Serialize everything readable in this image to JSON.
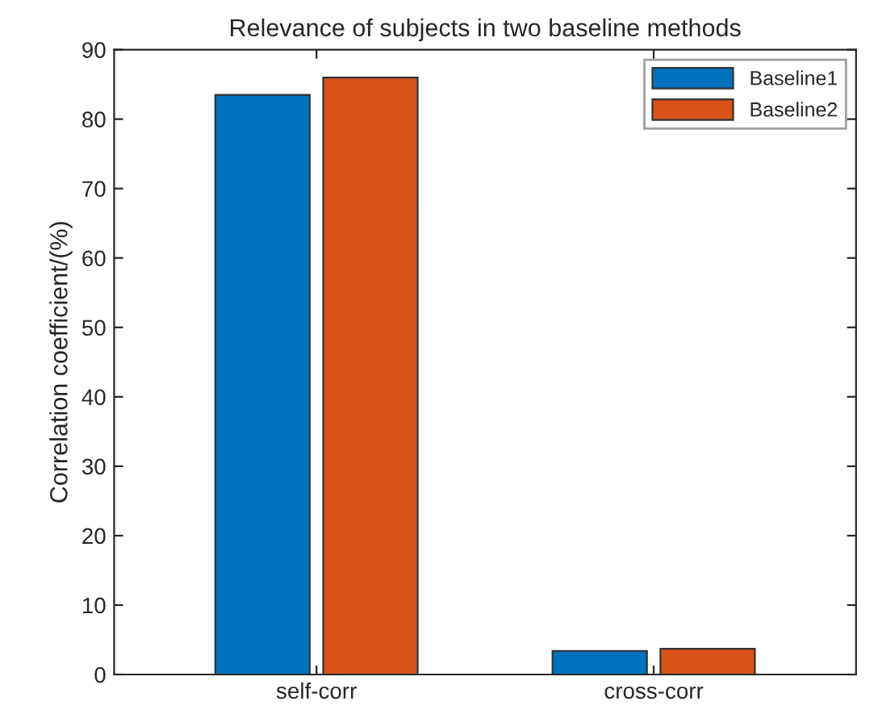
{
  "chart_data": {
    "type": "bar",
    "title": "Relevance of subjects in two baseline methods",
    "ylabel": "Correlation coefficient/(%)",
    "categories": [
      "self-corr",
      "cross-corr"
    ],
    "series": [
      {
        "name": "Baseline1",
        "color": "#0072bd",
        "values": [
          83.5,
          3.4
        ]
      },
      {
        "name": "Baseline2",
        "color": "#d95319",
        "values": [
          86.0,
          3.7
        ]
      }
    ],
    "ylim": [
      0,
      90
    ],
    "yticks": [
      0,
      10,
      20,
      30,
      40,
      50,
      60,
      70,
      80,
      90
    ],
    "grid": false,
    "legend": "top right"
  }
}
